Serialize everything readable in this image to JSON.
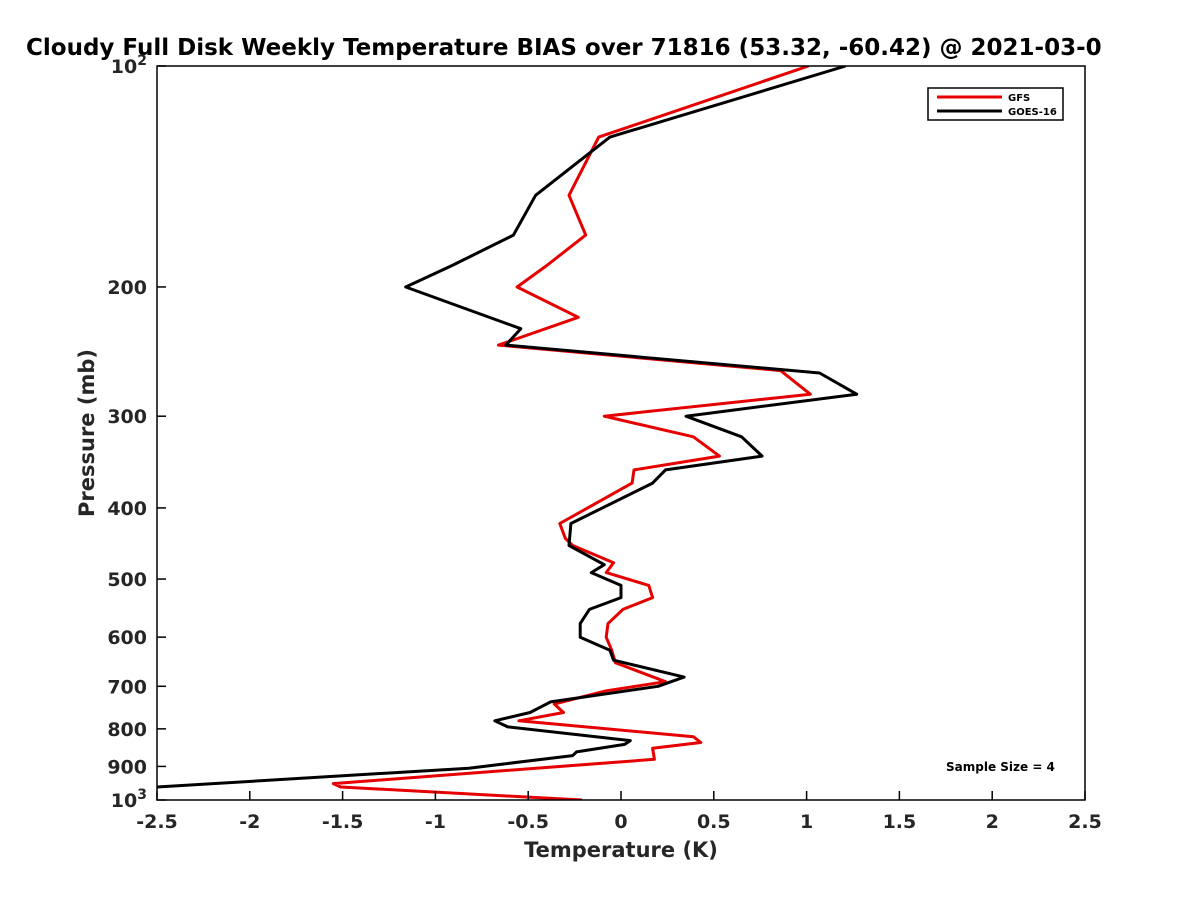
{
  "chart_data": {
    "type": "line",
    "title": "Cloudy Full Disk Weekly Temperature BIAS over 71816 (53.32, -60.42) @ 2021-03-0",
    "xlabel": "Temperature (K)",
    "ylabel": "Pressure (mb)",
    "xlim": [
      -2.5,
      2.5
    ],
    "ylim": [
      100,
      1000
    ],
    "yscale": "log",
    "y_reversed": true,
    "xticks": [
      "-2.5",
      "-2",
      "-1.5",
      "-1",
      "-0.5",
      "0",
      "0.5",
      "1",
      "1.5",
      "2",
      "2.5"
    ],
    "yticks": [
      {
        "value": 100,
        "base": "10",
        "exp": "2"
      },
      {
        "value": 200,
        "label": "200"
      },
      {
        "value": 300,
        "label": "300"
      },
      {
        "value": 400,
        "label": "400"
      },
      {
        "value": 500,
        "label": "500"
      },
      {
        "value": 600,
        "label": "600"
      },
      {
        "value": 700,
        "label": "700"
      },
      {
        "value": 800,
        "label": "800"
      },
      {
        "value": 900,
        "label": "900"
      },
      {
        "value": 1000,
        "base": "10",
        "exp": "3"
      }
    ],
    "grid": false,
    "legend_position": "top-right",
    "annotation": "Sample Size = 4",
    "series": [
      {
        "name": "GFS",
        "color": "#e60000",
        "points": [
          [
            1.01,
            100
          ],
          [
            -0.12,
            125
          ],
          [
            -0.28,
            150
          ],
          [
            -0.19,
            170
          ],
          [
            -0.4,
            187
          ],
          [
            -0.56,
            200
          ],
          [
            -0.23,
            220
          ],
          [
            -0.66,
            240
          ],
          [
            0.86,
            260
          ],
          [
            1.02,
            280
          ],
          [
            -0.09,
            300
          ],
          [
            0.39,
            320
          ],
          [
            0.53,
            340
          ],
          [
            0.07,
            355
          ],
          [
            0.06,
            370
          ],
          [
            -0.33,
            420
          ],
          [
            -0.3,
            440
          ],
          [
            -0.26,
            450
          ],
          [
            -0.04,
            475
          ],
          [
            -0.08,
            490
          ],
          [
            0.15,
            510
          ],
          [
            0.17,
            530
          ],
          [
            0.01,
            550
          ],
          [
            -0.07,
            575
          ],
          [
            -0.08,
            600
          ],
          [
            -0.05,
            625
          ],
          [
            -0.03,
            650
          ],
          [
            0.24,
            690
          ],
          [
            -0.08,
            710
          ],
          [
            -0.36,
            740
          ],
          [
            -0.31,
            760
          ],
          [
            -0.55,
            780
          ],
          [
            0.39,
            820
          ],
          [
            0.43,
            835
          ],
          [
            0.17,
            850
          ],
          [
            0.18,
            880
          ],
          [
            -1.55,
            950
          ],
          [
            -1.51,
            960
          ],
          [
            -0.21,
            1000
          ]
        ]
      },
      {
        "name": "GOES-16",
        "color": "#000000",
        "points": [
          [
            1.21,
            100
          ],
          [
            -0.06,
            125
          ],
          [
            -0.46,
            150
          ],
          [
            -0.58,
            170
          ],
          [
            -0.91,
            187
          ],
          [
            -1.16,
            200
          ],
          [
            -0.54,
            228
          ],
          [
            -0.62,
            240
          ],
          [
            1.07,
            262
          ],
          [
            1.27,
            280
          ],
          [
            0.35,
            300
          ],
          [
            0.65,
            320
          ],
          [
            0.76,
            340
          ],
          [
            0.24,
            355
          ],
          [
            0.17,
            370
          ],
          [
            -0.27,
            420
          ],
          [
            -0.28,
            450
          ],
          [
            -0.09,
            478
          ],
          [
            -0.16,
            490
          ],
          [
            0.0,
            510
          ],
          [
            0.0,
            530
          ],
          [
            -0.17,
            550
          ],
          [
            -0.22,
            575
          ],
          [
            -0.22,
            600
          ],
          [
            -0.06,
            625
          ],
          [
            -0.04,
            645
          ],
          [
            0.34,
            680
          ],
          [
            0.2,
            700
          ],
          [
            -0.38,
            735
          ],
          [
            -0.49,
            760
          ],
          [
            -0.68,
            780
          ],
          [
            -0.61,
            795
          ],
          [
            0.05,
            830
          ],
          [
            0.02,
            840
          ],
          [
            -0.24,
            860
          ],
          [
            -0.26,
            870
          ],
          [
            -0.82,
            905
          ],
          [
            -2.5,
            960
          ]
        ]
      }
    ]
  }
}
